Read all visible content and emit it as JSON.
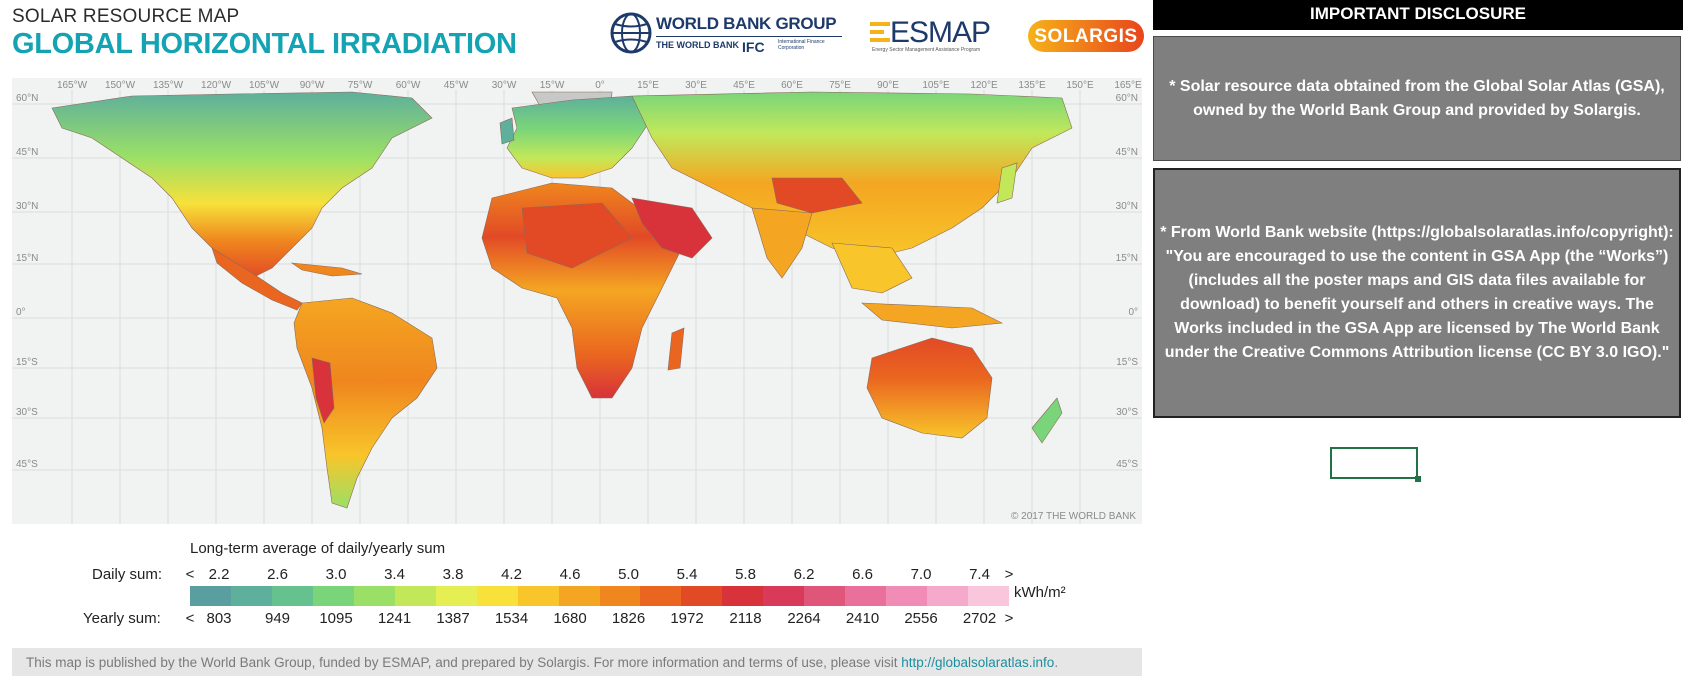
{
  "header": {
    "subtitle": "SOLAR RESOURCE MAP",
    "title": "GLOBAL HORIZONTAL IRRADIATION"
  },
  "logos": {
    "world_bank": {
      "name": "WORLD BANK GROUP",
      "sub": "THE WORLD BANK",
      "ifc": "IFC",
      "ifc_sub": "International Finance Corporation"
    },
    "esmap": {
      "name": "ESMAP",
      "sub": "Energy Sector Management Assistance Program"
    },
    "solargis": {
      "name": "SOLARGIS"
    }
  },
  "map": {
    "longitude_ticks": [
      "165°W",
      "150°W",
      "135°W",
      "120°W",
      "105°W",
      "90°W",
      "75°W",
      "60°W",
      "45°W",
      "30°W",
      "15°W",
      "0°",
      "15°E",
      "30°E",
      "45°E",
      "60°E",
      "75°E",
      "90°E",
      "105°E",
      "120°E",
      "135°E",
      "150°E",
      "165°E"
    ],
    "latitude_ticks": [
      "60°N",
      "45°N",
      "30°N",
      "15°N",
      "0°",
      "15°S",
      "30°S",
      "45°S"
    ],
    "copyright": "© 2017 THE WORLD BANK",
    "colors": {
      "ocean": "#f1f2f2",
      "border": "#8a6a5a",
      "no_data": "#c8c8c8"
    }
  },
  "legend": {
    "title": "Long-term average of daily/yearly sum",
    "daily_label": "Daily sum:",
    "yearly_label": "Yearly sum:",
    "daily_values": [
      "2.2",
      "2.6",
      "3.0",
      "3.4",
      "3.8",
      "4.2",
      "4.6",
      "5.0",
      "5.4",
      "5.8",
      "6.2",
      "6.6",
      "7.0",
      "7.4"
    ],
    "yearly_values": [
      "803",
      "949",
      "1095",
      "1241",
      "1387",
      "1534",
      "1680",
      "1826",
      "1972",
      "2118",
      "2264",
      "2410",
      "2556",
      "2702"
    ],
    "less_than": "<",
    "greater_than": ">",
    "unit": "kWh/m²",
    "colors": [
      "#5a9ea0",
      "#5eaf9c",
      "#65c28f",
      "#7ad57a",
      "#9be066",
      "#c2e85a",
      "#e5ee52",
      "#f7e13a",
      "#f8c52a",
      "#f4a622",
      "#ef861e",
      "#ea6620",
      "#e24a26",
      "#d8323a",
      "#d93a5a",
      "#e0567a",
      "#e8709a",
      "#f08cb6",
      "#f6aacb",
      "#fac6dc"
    ]
  },
  "footer": {
    "text": "This map is published by the World Bank Group, funded by ESMAP, and prepared by Solargis. For more information and terms of use, please visit ",
    "link": "http://globalsolaratlas.info",
    "end": "."
  },
  "disclosure": {
    "header": "IMPORTANT DISCLOSURE",
    "box1": "* Solar resource data obtained from the Global Solar Atlas (GSA), owned by the World Bank Group and provided by Solargis.",
    "box2": "* From World Bank website (https://globalsolaratlas.info/copyright): \"You are encouraged to use the content in GSA App (the “Works”) (includes all the poster maps and GIS data files available for download) to benefit yourself and others in creative ways. The Works included in the GSA App are licensed by The World Bank under the Creative Commons Attribution license (CC BY 3.0 IGO).\""
  }
}
